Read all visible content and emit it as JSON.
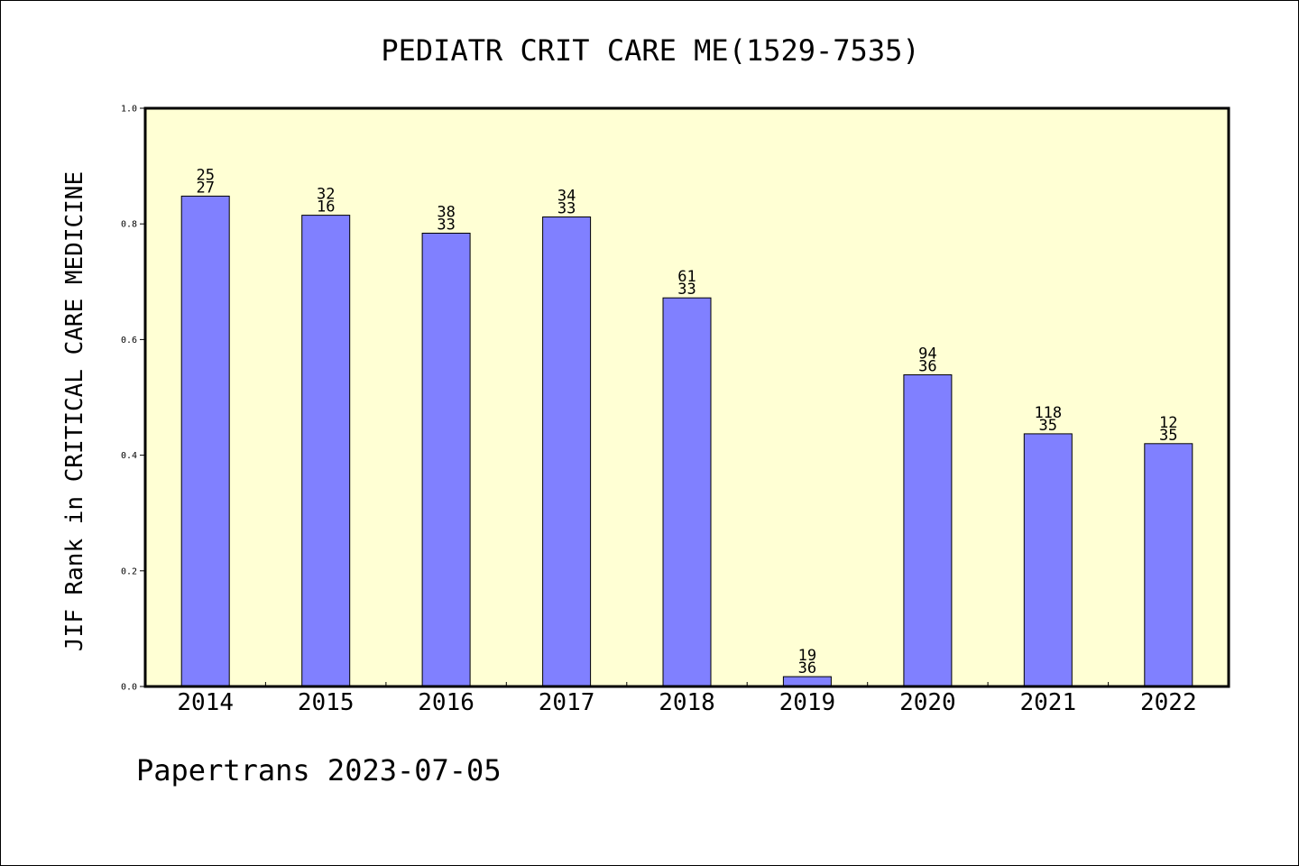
{
  "chart_data": {
    "type": "bar",
    "title": "PEDIATR CRIT CARE ME(1529-7535)",
    "xlabel": "",
    "ylabel": "JIF Rank in CRITICAL CARE MEDICINE",
    "categories": [
      "2014",
      "2015",
      "2016",
      "2017",
      "2018",
      "2019",
      "2020",
      "2021",
      "2022"
    ],
    "values": [
      0.848,
      0.815,
      0.784,
      0.812,
      0.672,
      0.017,
      0.539,
      0.437,
      0.42
    ],
    "bar_labels": [
      [
        "25",
        "27"
      ],
      [
        "32",
        "16"
      ],
      [
        "38",
        "33"
      ],
      [
        "34",
        "33"
      ],
      [
        "61",
        "33"
      ],
      [
        "19",
        "36"
      ],
      [
        "94",
        "36"
      ],
      [
        "118",
        "35"
      ],
      [
        "12",
        "35"
      ]
    ],
    "ylim": [
      0.0,
      1.0
    ],
    "yticks": [
      "0.0",
      "0.2",
      "0.4",
      "0.6",
      "0.8",
      "1.0"
    ],
    "grid": false,
    "colors": {
      "bar": "#8080ff",
      "plot_background": "#ffffd4"
    }
  },
  "footer": {
    "text": "Papertrans 2023-07-05"
  }
}
